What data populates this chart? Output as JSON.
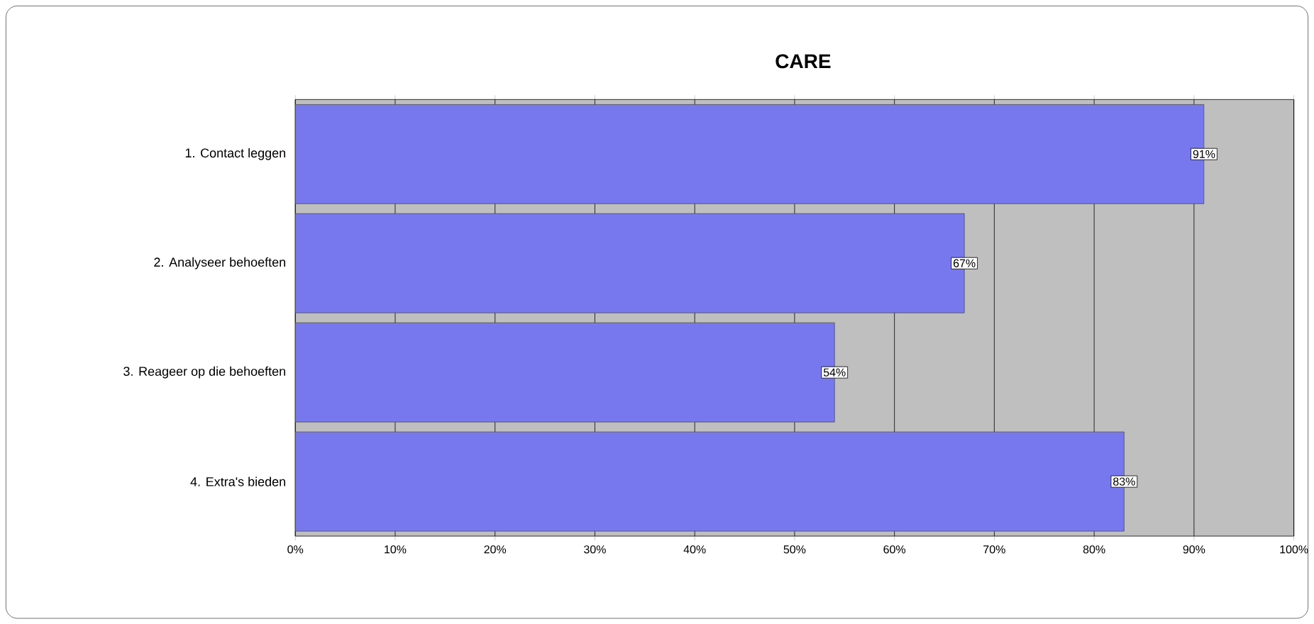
{
  "chart_data": {
    "type": "bar",
    "orientation": "horizontal",
    "title": "CARE",
    "categories": [
      "1. Contact leggen",
      "2. Analyseer behoeften",
      "3. Reageer op die behoeften",
      "4. Extra's bieden"
    ],
    "values": [
      91,
      67,
      54,
      83
    ],
    "value_labels": [
      "91%",
      "67%",
      "54%",
      "83%"
    ],
    "color": "#7878ee",
    "xlim": [
      0,
      100
    ],
    "xticks": [
      {
        "value": 0,
        "label": "0%"
      },
      {
        "value": 10,
        "label": "10%"
      },
      {
        "value": 20,
        "label": "20%"
      },
      {
        "value": 30,
        "label": "30%"
      },
      {
        "value": 40,
        "label": "40%"
      },
      {
        "value": 50,
        "label": "50%"
      },
      {
        "value": 60,
        "label": "60%"
      },
      {
        "value": 70,
        "label": "70%"
      },
      {
        "value": 80,
        "label": "80%"
      },
      {
        "value": 90,
        "label": "90%"
      },
      {
        "value": 100,
        "label": "100%"
      }
    ],
    "grid": "x"
  }
}
